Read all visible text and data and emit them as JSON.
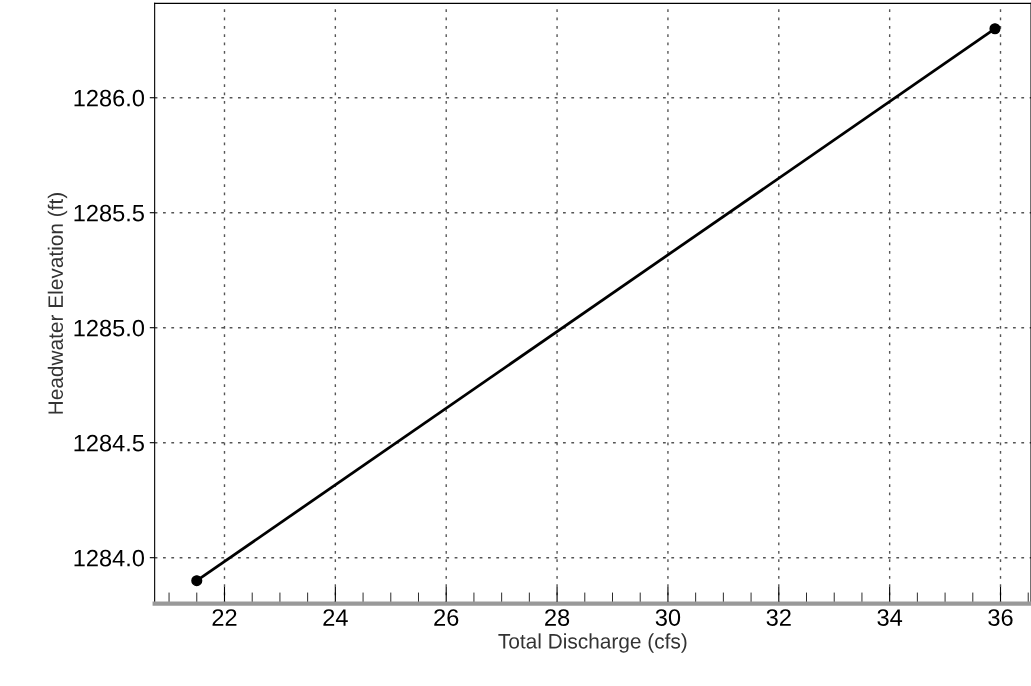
{
  "chart_data": {
    "type": "line",
    "xlabel": "Total Discharge (cfs)",
    "ylabel": "Headwater Elevation (ft)",
    "x": [
      21.5,
      35.9
    ],
    "series": [
      {
        "color": "#000000",
        "values": [
          1283.9,
          1286.3
        ]
      }
    ],
    "xlim": [
      20.74,
      36.55
    ],
    "ylim": [
      1283.8,
      1286.41
    ],
    "xticks": [
      22,
      24,
      26,
      28,
      30,
      32,
      34,
      36
    ],
    "yticks": [
      {
        "value": 1284,
        "label": "1284.0"
      },
      {
        "value": 1284.5,
        "label": "1284.5"
      },
      {
        "value": 1285,
        "label": "1285.0"
      },
      {
        "value": 1285.5,
        "label": "1285.5"
      },
      {
        "value": 1286,
        "label": "1286.0"
      }
    ],
    "grid": true,
    "marker": "circle",
    "line_style": "solid"
  }
}
